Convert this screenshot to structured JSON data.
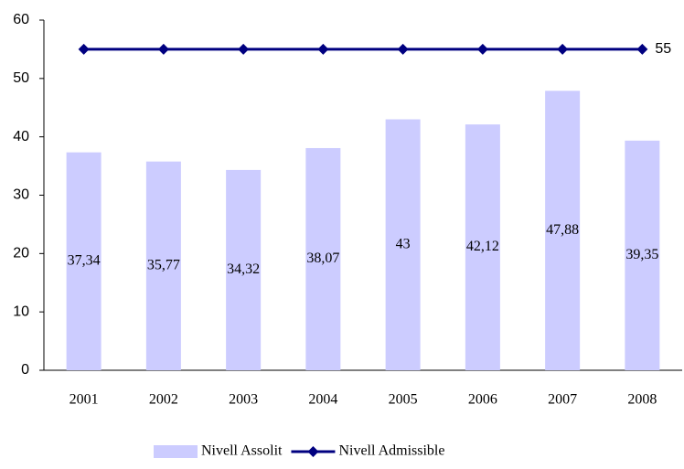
{
  "chart_data": {
    "type": "combo",
    "categories": [
      "2001",
      "2002",
      "2003",
      "2004",
      "2005",
      "2006",
      "2007",
      "2008"
    ],
    "series": [
      {
        "name": "Nivell Assolit",
        "type": "bar",
        "color": "#ccccff",
        "values": [
          37.34,
          35.77,
          34.32,
          38.07,
          43,
          42.12,
          47.88,
          39.35
        ],
        "value_labels": [
          "37,34",
          "35,77",
          "34,32",
          "38,07",
          "43",
          "42,12",
          "47,88",
          "39,35"
        ]
      },
      {
        "name": "Nivell Admissible",
        "type": "line",
        "color": "#000080",
        "values": [
          55,
          55,
          55,
          55,
          55,
          55,
          55,
          55
        ],
        "value_labels": [
          null,
          null,
          null,
          null,
          null,
          null,
          null,
          "55"
        ]
      }
    ],
    "ylim": [
      0,
      60
    ],
    "yticks": [
      0,
      10,
      20,
      30,
      40,
      50,
      60
    ],
    "grid": false,
    "legend": "bottom"
  }
}
